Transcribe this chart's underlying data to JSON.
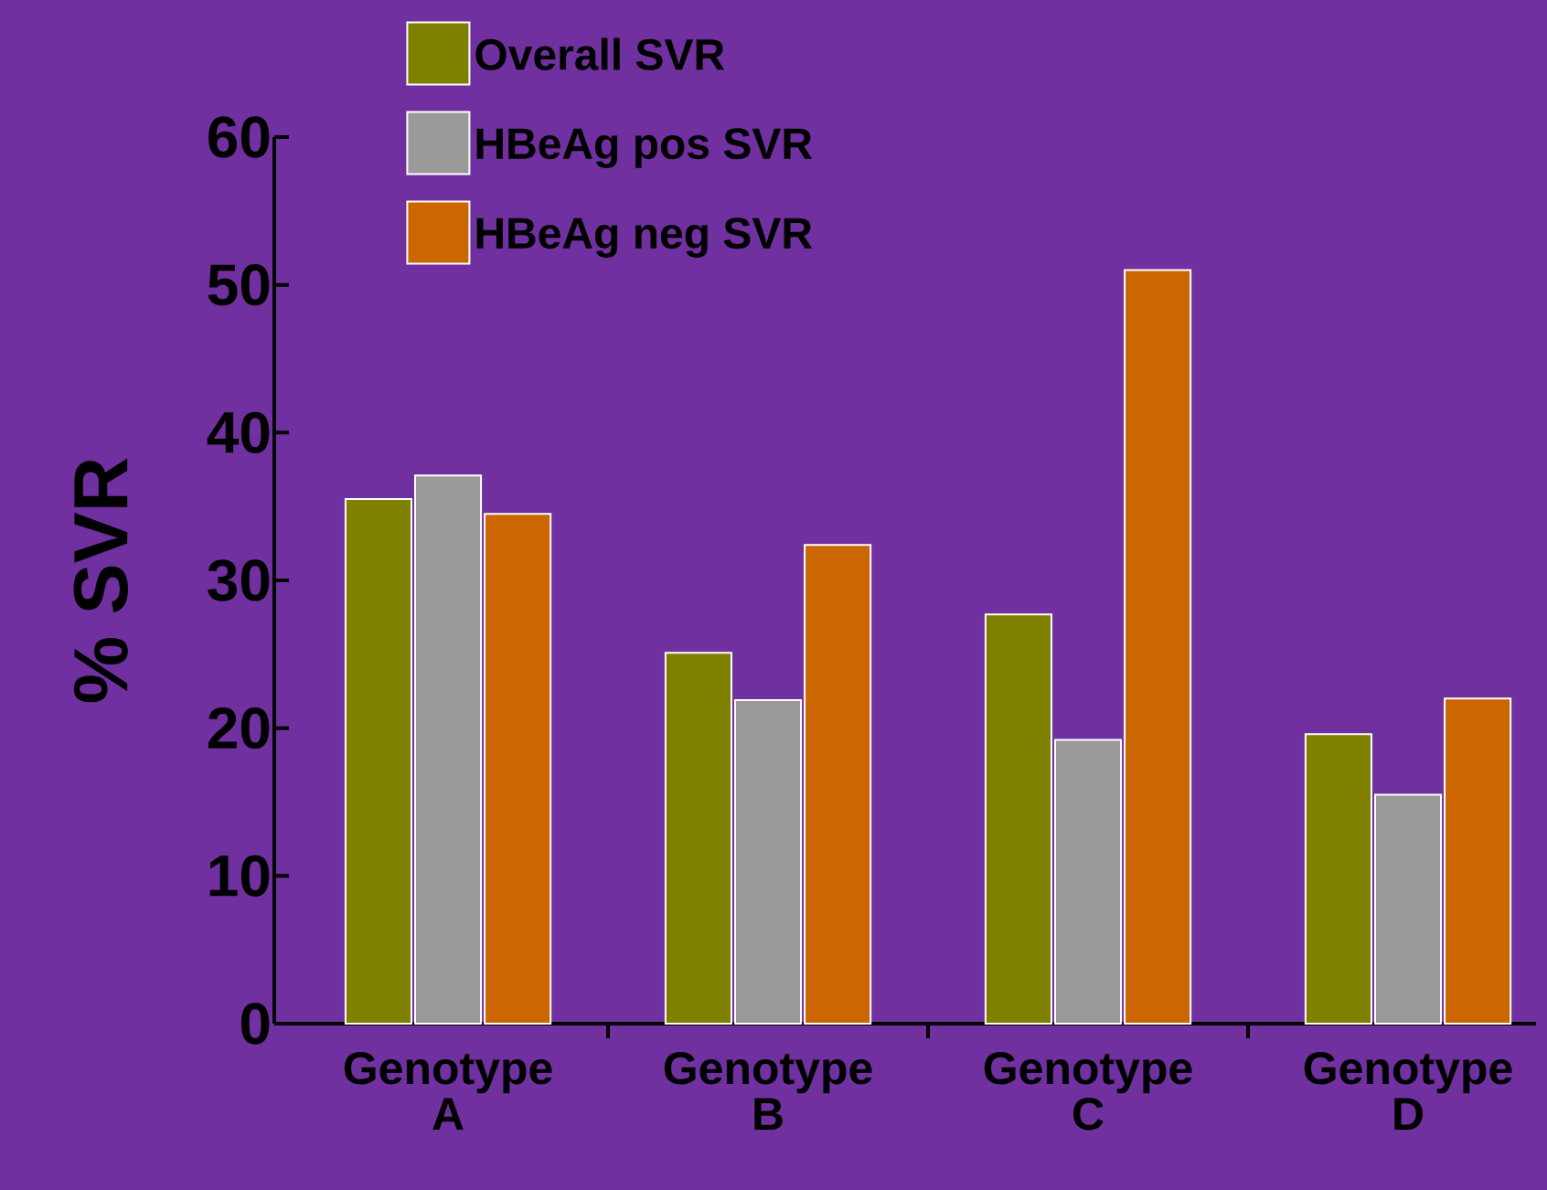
{
  "chart_data": {
    "type": "bar",
    "ylabel": "% SVR",
    "categories": [
      "Genotype A",
      "Genotype B",
      "Genotype C",
      "Genotype D"
    ],
    "series": [
      {
        "name": "Overall SVR",
        "color": "#7f7f00",
        "values": [
          35.5,
          25.1,
          27.7,
          19.6
        ]
      },
      {
        "name": "HBeAg pos SVR",
        "color": "#999999",
        "values": [
          37.1,
          21.9,
          19.2,
          15.5
        ]
      },
      {
        "name": "HBeAg neg SVR",
        "color": "#cc6600",
        "values": [
          34.5,
          32.4,
          51.0,
          22.0
        ]
      }
    ],
    "ylim": [
      0,
      60
    ],
    "yticks": [
      0,
      10,
      20,
      30,
      40,
      50,
      60
    ],
    "legend": "top"
  }
}
